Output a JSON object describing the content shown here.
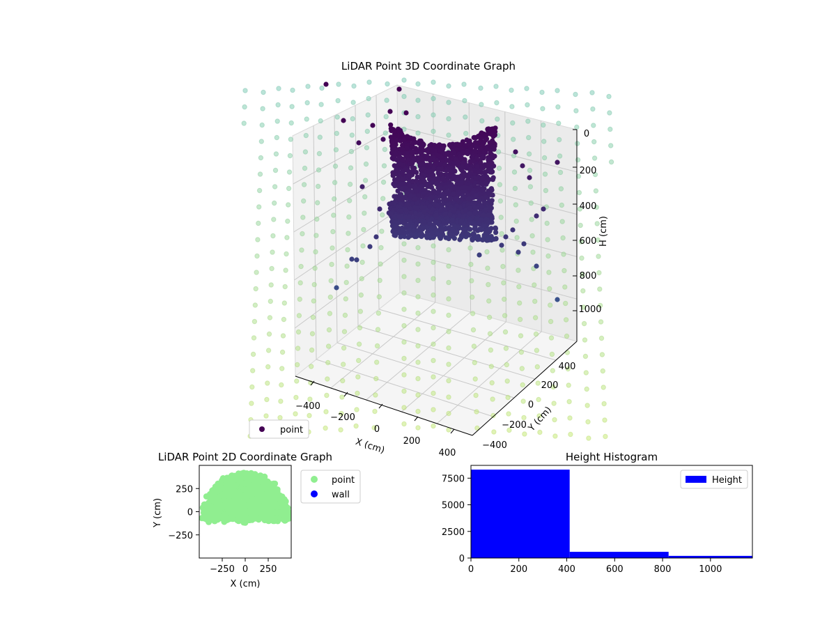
{
  "chart_data": [
    {
      "type": "scatter",
      "projection": "3d",
      "title": "LiDAR Point 3D Coordinate Graph",
      "xlabel": "X (cm)",
      "ylabel": "Y (cm)",
      "zlabel": "H (cm)",
      "xlim": [
        -500,
        500
      ],
      "ylim": [
        -500,
        500
      ],
      "zlim": [
        1100,
        0
      ],
      "xticks": [
        "−400",
        "−200",
        "0",
        "200",
        "400"
      ],
      "yticks": [
        "−400",
        "−200",
        "0",
        "200",
        "400"
      ],
      "zticks": [
        "0",
        "200",
        "400",
        "600",
        "800",
        "1000"
      ],
      "grid": true,
      "legend": {
        "placement": "lower-left",
        "entries": [
          {
            "label": "point",
            "color": "#440154"
          }
        ]
      },
      "series": [
        {
          "label": "point",
          "color": "#440154",
          "description_color": "viridis by height, dark purple"
        },
        {
          "label": "wall",
          "color": "#7fcdbb",
          "description_color": "translucent teal-green grid points"
        }
      ]
    },
    {
      "type": "scatter",
      "title": "LiDAR Point 2D Coordinate Graph",
      "xlabel": "X (cm)",
      "ylabel": "Y (cm)",
      "xlim": [
        -500,
        500
      ],
      "ylim": [
        -500,
        500
      ],
      "xticks": [
        -250,
        0,
        250
      ],
      "xtick_labels": [
        "−250",
        "0",
        "250"
      ],
      "yticks": [
        -250,
        0,
        250
      ],
      "ytick_labels": [
        "−250",
        "0",
        "250"
      ],
      "legend": {
        "placement": "outside-right",
        "entries": [
          {
            "label": "point",
            "color": "#90ee90"
          },
          {
            "label": "wall",
            "color": "#0000ff"
          }
        ]
      }
    },
    {
      "type": "bar",
      "title": "Height Histogram",
      "xlim": [
        0,
        1175
      ],
      "ylim": [
        0,
        8700
      ],
      "xticks": [
        0,
        200,
        400,
        600,
        800,
        1000
      ],
      "yticks": [
        0,
        2500,
        5000,
        7500
      ],
      "bins": [
        {
          "x0": 0,
          "x1": 412,
          "value": 8300
        },
        {
          "x0": 412,
          "x1": 825,
          "value": 580
        },
        {
          "x0": 825,
          "x1": 1175,
          "value": 200
        }
      ],
      "color": "#0000ff",
      "legend": {
        "placement": "top-right",
        "entries": [
          {
            "label": "Height",
            "color": "#0000ff"
          }
        ]
      }
    }
  ]
}
